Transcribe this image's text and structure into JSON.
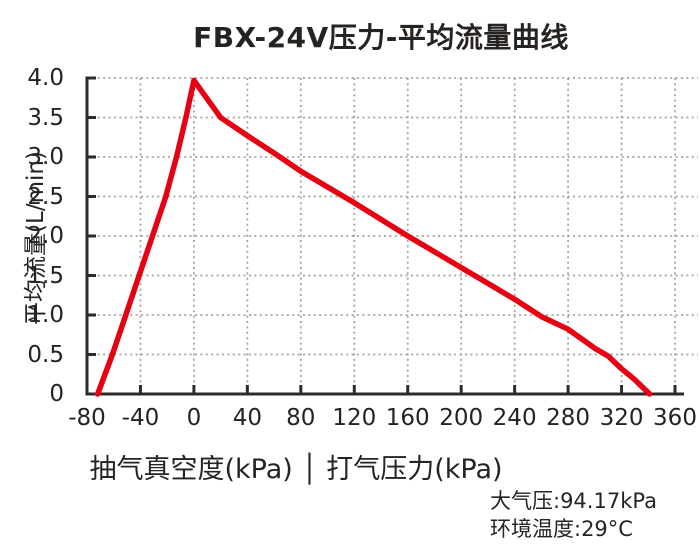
{
  "chart_data": {
    "type": "line",
    "title": "FBX-24V压力-平均流量曲线",
    "xlabel": "抽气真空度(kPa) │ 打气压力(kPa)",
    "ylabel": "平均流量(L/min)",
    "xlim": [
      -80,
      360
    ],
    "ylim": [
      0,
      4
    ],
    "x_ticks": [
      -80,
      -40,
      0,
      40,
      80,
      120,
      160,
      200,
      240,
      280,
      320,
      360
    ],
    "y_ticks": [
      0,
      0.5,
      1,
      1.5,
      2,
      2.5,
      3,
      3.5,
      4
    ],
    "grid": "dotted",
    "legend": "none",
    "series": [
      {
        "color": "#e60012",
        "points": [
          [
            -72,
            0
          ],
          [
            -61,
            0.5
          ],
          [
            -51,
            1.0
          ],
          [
            -41,
            1.5
          ],
          [
            -31,
            2.0
          ],
          [
            -21,
            2.5
          ],
          [
            -13,
            3.0
          ],
          [
            -6,
            3.5
          ],
          [
            0,
            3.97
          ],
          [
            20,
            3.5
          ],
          [
            40,
            3.27
          ],
          [
            60,
            3.05
          ],
          [
            80,
            2.82
          ],
          [
            100,
            2.62
          ],
          [
            120,
            2.42
          ],
          [
            140,
            2.21
          ],
          [
            160,
            2.0
          ],
          [
            180,
            1.8
          ],
          [
            200,
            1.6
          ],
          [
            220,
            1.4
          ],
          [
            240,
            1.2
          ],
          [
            260,
            0.98
          ],
          [
            280,
            0.82
          ],
          [
            300,
            0.58
          ],
          [
            310,
            0.48
          ],
          [
            320,
            0.32
          ],
          [
            330,
            0.18
          ],
          [
            341,
            0
          ]
        ]
      }
    ]
  },
  "annotations": {
    "atmospheric_pressure": "大气压:94.17kPa",
    "ambient_temperature": "环境温度:29°C"
  },
  "colors": {
    "curve": "#e60012",
    "axis": "#2e2a28",
    "grid": "#a6a39f",
    "text": "#262321",
    "background": "#ffffff"
  }
}
